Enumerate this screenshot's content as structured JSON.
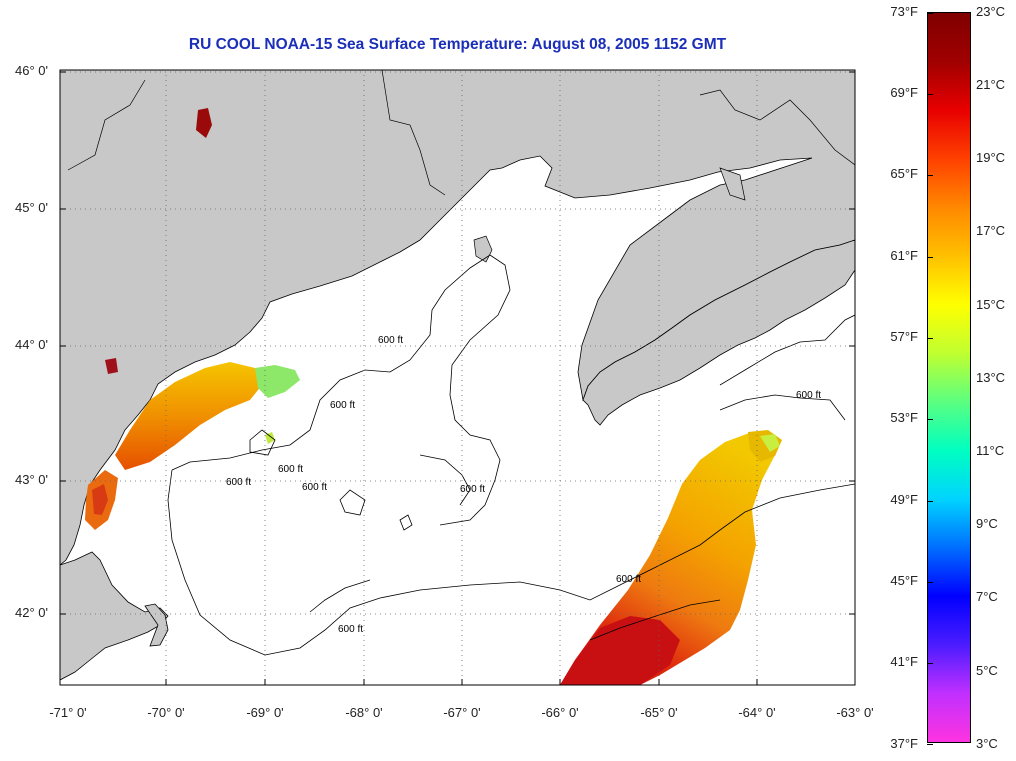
{
  "title": "RU COOL  NOAA-15  Sea Surface Temperature:  August 08, 2005 1152 GMT",
  "lat_labels": [
    "46° 0'",
    "45° 0'",
    "44° 0'",
    "43° 0'",
    "42° 0'"
  ],
  "lon_labels": [
    "-71° 0'",
    "-70° 0'",
    "-69° 0'",
    "-68° 0'",
    "-67° 0'",
    "-66° 0'",
    "-65° 0'",
    "-64° 0'",
    "-63° 0'"
  ],
  "contour_label": "600 ft",
  "colorbar": {
    "fahrenheit": [
      "73°F",
      "69°F",
      "65°F",
      "61°F",
      "57°F",
      "53°F",
      "49°F",
      "45°F",
      "41°F",
      "37°F"
    ],
    "celsius": [
      "23°C",
      "21°C",
      "19°C",
      "17°C",
      "15°C",
      "13°C",
      "11°C",
      "9°C",
      "7°C",
      "5°C",
      "3°C"
    ],
    "stops": [
      "#ff33e0",
      "#c030ff",
      "#4b1cff",
      "#0000ff",
      "#006eff",
      "#00d4ff",
      "#00ffc0",
      "#5bff80",
      "#c0ff30",
      "#ffff00",
      "#ffc000",
      "#ff8800",
      "#ff4000",
      "#e80000",
      "#a00000",
      "#800000"
    ]
  },
  "colors": {
    "land": "#c8c8c8",
    "water": "#ffffff",
    "title": "#1c2fb8",
    "warm": "#e8500a",
    "hot": "#cc1010",
    "yellow": "#f5c400",
    "green": "#7fe860"
  }
}
